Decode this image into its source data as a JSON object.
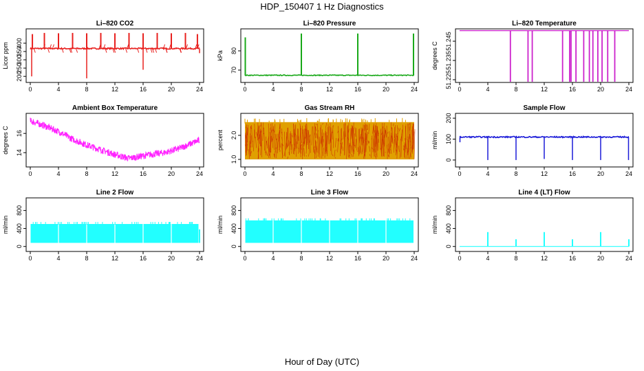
{
  "figure": {
    "title": "HDP_150407  1 Hz Diagnostics",
    "xlabel": "Hour of Day (UTC)"
  },
  "chart_data": [
    {
      "type": "line",
      "title": "Li–820 CO2",
      "ylabel": "Licor ppm",
      "color": "#e8201e",
      "xlim": [
        0,
        24
      ],
      "xticks": [
        0,
        4,
        8,
        12,
        16,
        20,
        24
      ],
      "ylim": [
        180,
        470
      ],
      "yticks": [
        200,
        250,
        300,
        350,
        400
      ],
      "pattern": "base_spikes",
      "baseline": 368,
      "noise": 4,
      "spikes_up": [
        [
          0.3,
          455
        ],
        [
          2,
          462
        ],
        [
          4,
          460
        ],
        [
          6,
          462
        ],
        [
          8,
          460
        ],
        [
          10,
          462
        ],
        [
          12,
          460
        ],
        [
          14,
          462
        ],
        [
          16,
          460
        ],
        [
          18,
          462
        ],
        [
          20,
          460
        ],
        [
          22,
          462
        ],
        [
          23.7,
          455
        ]
      ],
      "spikes_down": [
        [
          0.2,
          200
        ],
        [
          8.0,
          188
        ],
        [
          16.0,
          240
        ],
        [
          24.0,
          340
        ]
      ]
    },
    {
      "type": "line",
      "title": "Li–820 Pressure",
      "ylabel": "kPa",
      "color": "#18a818",
      "xlim": [
        0,
        24
      ],
      "xticks": [
        0,
        4,
        8,
        12,
        16,
        20,
        24
      ],
      "ylim": [
        65,
        90
      ],
      "yticks": [
        70,
        80
      ],
      "pattern": "base_spikes",
      "baseline": 67.3,
      "noise": 0.2,
      "spikes_up": [
        [
          0.05,
          87
        ],
        [
          8.0,
          89
        ],
        [
          16.0,
          89
        ],
        [
          23.9,
          89
        ]
      ],
      "spikes_down": []
    },
    {
      "type": "line",
      "title": "Li–820 Temperature",
      "ylabel": "degrees C",
      "color": "#cc22cc",
      "xlim": [
        0,
        24
      ],
      "xticks": [
        0,
        4,
        8,
        12,
        16,
        20,
        24
      ],
      "ylim": [
        51.225,
        51.25
      ],
      "yticks": [
        51.225,
        51.235,
        51.245
      ],
      "ytick_labels": [
        "51.225",
        "51.235",
        "51.245"
      ],
      "pattern": "top_drops",
      "baseline": 51.2505,
      "drops": [
        [
          7.2,
          51.225
        ],
        [
          9.7,
          51.225
        ],
        [
          10.3,
          51.225
        ],
        [
          14.6,
          51.225
        ],
        [
          15.6,
          51.225
        ],
        [
          15.8,
          51.225
        ],
        [
          16.5,
          51.243
        ],
        [
          17.6,
          51.225
        ],
        [
          18.4,
          51.225
        ],
        [
          18.9,
          51.225
        ],
        [
          19.6,
          51.225
        ],
        [
          20.2,
          51.225
        ],
        [
          21.0,
          51.225
        ],
        [
          22.0,
          51.225
        ]
      ]
    },
    {
      "type": "line",
      "title": "Ambient Box Temperature",
      "ylabel": "degrees C",
      "color": "#ff22ff",
      "xlim": [
        0,
        24
      ],
      "xticks": [
        0,
        4,
        8,
        12,
        16,
        20,
        24
      ],
      "ylim": [
        12.8,
        17.8
      ],
      "yticks": [
        14,
        16
      ],
      "pattern": "band_curve",
      "curve": [
        [
          0,
          17.3
        ],
        [
          2,
          16.8
        ],
        [
          4,
          16.2
        ],
        [
          6,
          15.4
        ],
        [
          8,
          14.8
        ],
        [
          10,
          14.3
        ],
        [
          12,
          13.8
        ],
        [
          14,
          13.4
        ],
        [
          15.5,
          13.6
        ],
        [
          17,
          13.8
        ],
        [
          19,
          14.0
        ],
        [
          21,
          14.4
        ],
        [
          23,
          15.0
        ],
        [
          24,
          15.3
        ]
      ],
      "band": 0.35
    },
    {
      "type": "line",
      "title": "Gas Stream RH",
      "ylabel": "percent",
      "color": "#e0a000",
      "xlim": [
        0,
        24
      ],
      "xticks": [
        0,
        4,
        8,
        12,
        16,
        20,
        24
      ],
      "ylim": [
        0.8,
        2.8
      ],
      "yticks": [
        1.0,
        2.0
      ],
      "ytick_labels": [
        "1.0",
        "2.0"
      ],
      "pattern": "rh_band",
      "top": 2.55,
      "bottom": 1.0,
      "overlay_color": "#cc3300"
    },
    {
      "type": "line",
      "title": "Sample Flow",
      "ylabel": "ml/min",
      "color": "#1a1ad8",
      "xlim": [
        0,
        24
      ],
      "xticks": [
        0,
        4,
        8,
        12,
        16,
        20,
        24
      ],
      "ylim": [
        -20,
        210
      ],
      "yticks": [
        0,
        100,
        200
      ],
      "pattern": "base_spikes",
      "baseline": 110,
      "noise": 3,
      "spikes_up": [],
      "spikes_down": [
        [
          0.05,
          85
        ],
        [
          4.0,
          0
        ],
        [
          8.0,
          0
        ],
        [
          12.0,
          5
        ],
        [
          16.0,
          0
        ],
        [
          20.0,
          0
        ],
        [
          23.95,
          0
        ]
      ]
    },
    {
      "type": "line",
      "title": "Line 2 Flow",
      "ylabel": "ml/min",
      "color": "#22ffff",
      "xlim": [
        0,
        24
      ],
      "xticks": [
        0,
        4,
        8,
        12,
        16,
        20,
        24
      ],
      "ylim": [
        -50,
        1020
      ],
      "yticks": [
        0,
        400,
        800
      ],
      "pattern": "flow_band",
      "top": 500,
      "bottom": 80,
      "start": 0.05,
      "end": 23.85,
      "gaps": [
        4,
        8,
        12,
        16,
        20
      ],
      "tail": [
        [
          24,
          380
        ]
      ]
    },
    {
      "type": "line",
      "title": "Line 3 Flow",
      "ylabel": "ml/min",
      "color": "#22ffff",
      "xlim": [
        0,
        24
      ],
      "xticks": [
        0,
        4,
        8,
        12,
        16,
        20,
        24
      ],
      "ylim": [
        -50,
        1020
      ],
      "yticks": [
        0,
        400,
        800
      ],
      "pattern": "flow_band",
      "top": 580,
      "bottom": 80,
      "start": 0.05,
      "end": 23.9,
      "gaps": [
        4,
        8,
        12,
        16,
        20
      ],
      "tail": []
    },
    {
      "type": "line",
      "title": "Line 4 (LT) Flow",
      "ylabel": "ml/min",
      "color": "#22ffff",
      "xlim": [
        0,
        24
      ],
      "xticks": [
        0,
        4,
        8,
        12,
        16,
        20,
        24
      ],
      "ylim": [
        -50,
        1020
      ],
      "yticks": [
        0,
        400,
        800
      ],
      "pattern": "base_spikes",
      "baseline": 0,
      "noise": 0,
      "spikes_up": [
        [
          4.0,
          320
        ],
        [
          8.0,
          160
        ],
        [
          12.0,
          320
        ],
        [
          16.0,
          160
        ],
        [
          20.0,
          320
        ],
        [
          24.0,
          160
        ]
      ],
      "spikes_down": []
    }
  ]
}
